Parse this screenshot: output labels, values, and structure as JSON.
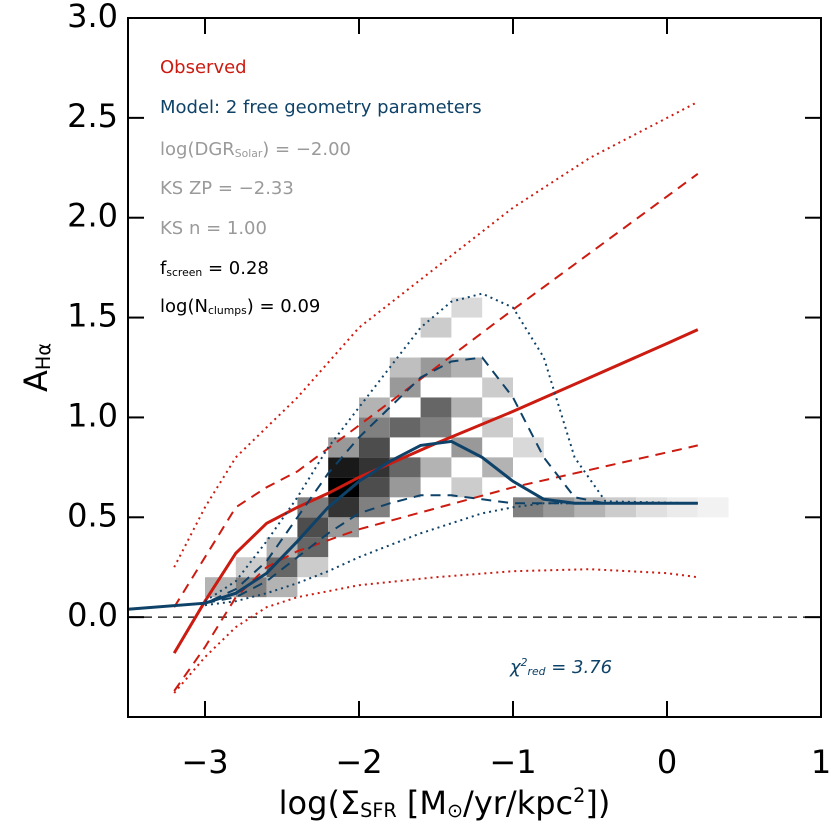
{
  "chart_data": {
    "type": "line",
    "xlabel": [
      {
        "text": "log(Σ"
      },
      {
        "text": "SFR",
        "sub": true
      },
      {
        "text": " [M"
      },
      {
        "text": "⊙",
        "sub": true
      },
      {
        "text": "/yr/kpc"
      },
      {
        "text": "2",
        "sup": true
      },
      {
        "text": "])"
      }
    ],
    "ylabel": [
      {
        "text": "A"
      },
      {
        "text": "Hα",
        "sub": true
      }
    ],
    "xlim": [
      -3.5,
      1.0
    ],
    "ylim": [
      -0.5,
      3.0
    ],
    "xticks": [
      {
        "value": -3,
        "label": "−3"
      },
      {
        "value": -2,
        "label": "−2"
      },
      {
        "value": -1,
        "label": "−1"
      },
      0,
      1
    ],
    "yticks": [
      {
        "value": 0,
        "label": "0.0"
      },
      {
        "value": 0.5,
        "label": "0.5"
      },
      {
        "value": 1,
        "label": "1.0"
      },
      {
        "value": 1.5,
        "label": "1.5"
      },
      {
        "value": 2,
        "label": "2.0"
      },
      {
        "value": 2.5,
        "label": "2.5"
      },
      {
        "value": 3,
        "label": "3.0"
      }
    ],
    "hline": 0,
    "cells_x": [
      -2.9,
      -2.7,
      -2.7,
      -2.5,
      -2.5,
      -2.5,
      -2.3,
      -2.3,
      -2.3,
      -2.3,
      -2.1,
      -2.1,
      -2.1,
      -2.1,
      -2.1,
      -1.9,
      -1.9,
      -1.9,
      -1.9,
      -1.9,
      -1.9,
      -1.7,
      -1.7,
      -1.7,
      -1.7,
      -1.7,
      -1.5,
      -1.5,
      -1.5,
      -1.5,
      -1.5,
      -1.3,
      -1.3,
      -1.3,
      -1.3,
      -1.3,
      -1.1,
      -1.1,
      -1.1,
      -0.9,
      -0.9,
      -0.7,
      -0.5,
      -0.3,
      -0.1,
      0.1,
      0.3
    ],
    "cells_y": [
      0.15,
      0.15,
      0.25,
      0.25,
      0.15,
      0.35,
      0.35,
      0.45,
      0.55,
      0.25,
      0.45,
      0.55,
      0.65,
      0.75,
      0.85,
      0.55,
      0.65,
      0.75,
      0.85,
      0.95,
      1.05,
      0.65,
      0.75,
      0.95,
      1.15,
      1.25,
      0.75,
      0.95,
      1.05,
      1.25,
      1.45,
      0.65,
      0.85,
      1.05,
      1.25,
      1.55,
      0.75,
      0.95,
      1.15,
      0.55,
      0.85,
      0.55,
      0.55,
      0.55,
      0.55,
      0.55,
      0.55
    ],
    "cells_density": [
      0.3,
      0.5,
      0.2,
      0.6,
      0.3,
      0.3,
      0.6,
      0.7,
      0.5,
      0.2,
      0.4,
      0.8,
      1.0,
      0.9,
      0.4,
      0.5,
      0.7,
      0.8,
      0.7,
      0.5,
      0.3,
      0.4,
      0.6,
      0.6,
      0.4,
      0.25,
      0.3,
      0.5,
      0.6,
      0.4,
      0.2,
      0.2,
      0.4,
      0.3,
      0.3,
      0.15,
      0.3,
      0.2,
      0.2,
      0.5,
      0.15,
      0.4,
      0.3,
      0.2,
      0.12,
      0.08,
      0.05
    ],
    "series": [
      {
        "color": "#cc1b10",
        "dash": "dotted",
        "x": [
          -3.2,
          -3.0,
          -2.8,
          -2.6,
          -2.4,
          -2.0,
          -1.5,
          -1.0,
          -0.5,
          0,
          0.2
        ],
        "values": [
          0.25,
          0.55,
          0.8,
          0.95,
          1.1,
          1.45,
          1.75,
          2.05,
          2.3,
          2.5,
          2.58
        ]
      },
      {
        "color": "#cc1b10",
        "dash": "dotted",
        "x": [
          -3.2,
          -3.0,
          -2.8,
          -2.6,
          -2.4,
          -2.0,
          -1.5,
          -1.0,
          -0.5,
          0,
          0.2
        ],
        "values": [
          -0.38,
          -0.2,
          -0.05,
          0.05,
          0.1,
          0.16,
          0.2,
          0.23,
          0.24,
          0.22,
          0.2
        ]
      },
      {
        "color": "#cc1b10",
        "dash": "dashed",
        "x": [
          -3.2,
          -3.0,
          -2.8,
          -2.6,
          -2.4,
          -2.0,
          -1.0,
          0.2
        ],
        "values": [
          0.05,
          0.3,
          0.55,
          0.65,
          0.73,
          0.96,
          1.54,
          2.22
        ]
      },
      {
        "color": "#cc1b10",
        "dash": "dashed",
        "x": [
          -3.2,
          -3.0,
          -2.8,
          -2.6,
          -2.4,
          -2.0,
          -1.0,
          0.2
        ],
        "values": [
          -0.37,
          -0.15,
          0.1,
          0.25,
          0.33,
          0.44,
          0.65,
          0.86
        ]
      },
      {
        "color": "#cc1b10",
        "dash": "solid",
        "x": [
          -3.2,
          -3.0,
          -2.8,
          -2.6,
          -2.4,
          -2.2,
          -2.0,
          -1.5,
          -1.0,
          -0.5,
          0,
          0.2
        ],
        "values": [
          -0.18,
          0.08,
          0.32,
          0.47,
          0.55,
          0.62,
          0.7,
          0.87,
          1.03,
          1.2,
          1.37,
          1.44
        ]
      },
      {
        "color": "#0e4268",
        "dash": "dotted",
        "x": [
          -3.0,
          -2.8,
          -2.6,
          -2.4,
          -2.2,
          -2.0,
          -1.8,
          -1.6,
          -1.4,
          -1.2,
          -1.0,
          -0.8,
          -0.6,
          -0.4,
          0.2
        ],
        "values": [
          0.08,
          0.18,
          0.38,
          0.6,
          0.85,
          1.05,
          1.25,
          1.45,
          1.58,
          1.62,
          1.55,
          1.3,
          0.8,
          0.58,
          0.57
        ]
      },
      {
        "color": "#0e4268",
        "dash": "dotted",
        "x": [
          -3.0,
          -2.8,
          -2.6,
          -2.4,
          -2.2,
          -2.0,
          -1.8,
          -1.6,
          -1.4,
          -1.2,
          -1.0,
          -0.8,
          0.2
        ],
        "values": [
          0.06,
          0.08,
          0.12,
          0.17,
          0.23,
          0.3,
          0.36,
          0.42,
          0.47,
          0.52,
          0.55,
          0.57,
          0.57
        ]
      },
      {
        "color": "#0e4268",
        "dash": "dashed",
        "x": [
          -3.5,
          -3.0,
          -2.8,
          -2.6,
          -2.4,
          -2.2,
          -2.0,
          -1.8,
          -1.6,
          -1.4,
          -1.2,
          -1.0,
          -0.8,
          -0.6,
          -0.4,
          0.2
        ],
        "values": [
          0.04,
          0.07,
          0.14,
          0.28,
          0.5,
          0.72,
          0.9,
          1.05,
          1.2,
          1.28,
          1.3,
          1.1,
          0.8,
          0.6,
          0.57,
          0.57
        ]
      },
      {
        "color": "#0e4268",
        "dash": "dashed",
        "x": [
          -3.0,
          -2.8,
          -2.6,
          -2.4,
          -2.2,
          -2.0,
          -1.8,
          -1.6,
          -1.4,
          -1.2,
          -1.0,
          -0.8,
          0.2
        ],
        "values": [
          0.07,
          0.1,
          0.18,
          0.3,
          0.42,
          0.52,
          0.57,
          0.61,
          0.61,
          0.59,
          0.57,
          0.57,
          0.57
        ]
      },
      {
        "color": "#0e4268",
        "dash": "solid",
        "x": [
          -3.5,
          -3.0,
          -2.8,
          -2.6,
          -2.4,
          -2.2,
          -2.0,
          -1.8,
          -1.6,
          -1.4,
          -1.2,
          -1.0,
          -0.8,
          -0.6,
          -0.4,
          0.2
        ],
        "values": [
          0.04,
          0.07,
          0.12,
          0.22,
          0.38,
          0.55,
          0.68,
          0.78,
          0.86,
          0.88,
          0.8,
          0.68,
          0.59,
          0.57,
          0.57,
          0.57
        ]
      }
    ],
    "annotations": [
      {
        "color": "#cc1b10",
        "parts": [
          {
            "text": "Observed"
          }
        ]
      },
      {
        "color": "#0e4268",
        "parts": [
          {
            "text": "Model: 2 free geometry parameters"
          }
        ]
      },
      {
        "color": "#9a9a9a",
        "parts": [
          {
            "text": "log(DGR"
          },
          {
            "text": "Solar",
            "sub": true
          },
          {
            "text": ") = −2.00"
          }
        ]
      },
      {
        "color": "#9a9a9a",
        "parts": [
          {
            "text": "KS ZP = −2.33"
          }
        ]
      },
      {
        "color": "#9a9a9a",
        "parts": [
          {
            "text": "KS n = 1.00"
          }
        ]
      },
      {
        "color": "#000000",
        "parts": [
          {
            "text": "f"
          },
          {
            "text": "screen",
            "sub": true
          },
          {
            "text": " = 0.28"
          }
        ]
      },
      {
        "color": "#000000",
        "parts": [
          {
            "text": "log(N"
          },
          {
            "text": "clumps",
            "sub": true
          },
          {
            "text": ") = 0.09"
          }
        ]
      }
    ],
    "chi_annotation": {
      "color": "#0e4268",
      "parts": [
        {
          "text": "χ"
        },
        {
          "text": "2",
          "sup": true
        },
        {
          "text": "red",
          "sub": true
        },
        {
          "text": " = 3.76"
        }
      ]
    }
  }
}
